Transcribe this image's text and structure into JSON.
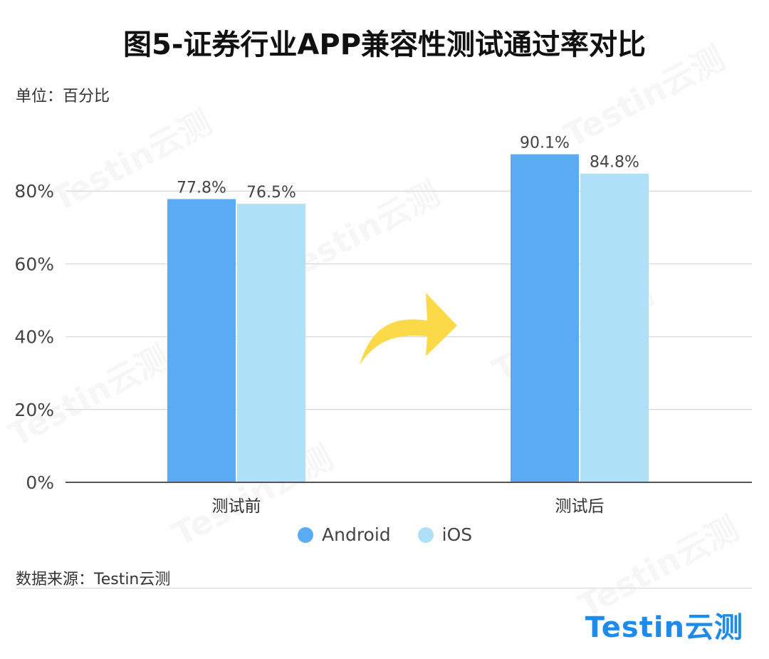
{
  "title": "图5-证券行业APP兼容性测试通过率对比",
  "unit_label": "单位：百分比",
  "source_label": "数据来源：Testin云测",
  "logo_text": "Testin云测",
  "watermark_text": "Testin云测",
  "colors": {
    "android": "#5aabf3",
    "ios": "#aee0f8",
    "arrow": "#fcd949",
    "grid": "#dddddd",
    "axis": "#555555"
  },
  "chart_data": {
    "type": "bar",
    "categories": [
      "测试前",
      "测试后"
    ],
    "series": [
      {
        "name": "Android",
        "values": [
          77.8,
          90.1
        ],
        "labels": [
          "77.8%",
          "90.1%"
        ]
      },
      {
        "name": "iOS",
        "values": [
          76.5,
          84.8
        ],
        "labels": [
          "76.5%",
          "84.8%"
        ]
      }
    ],
    "ylim": [
      0,
      100
    ],
    "yticks": [
      0,
      20,
      40,
      60,
      80
    ],
    "ytick_labels": [
      "0%",
      "20%",
      "40%",
      "60%",
      "80%"
    ],
    "grid": true,
    "legend": "bottom"
  }
}
